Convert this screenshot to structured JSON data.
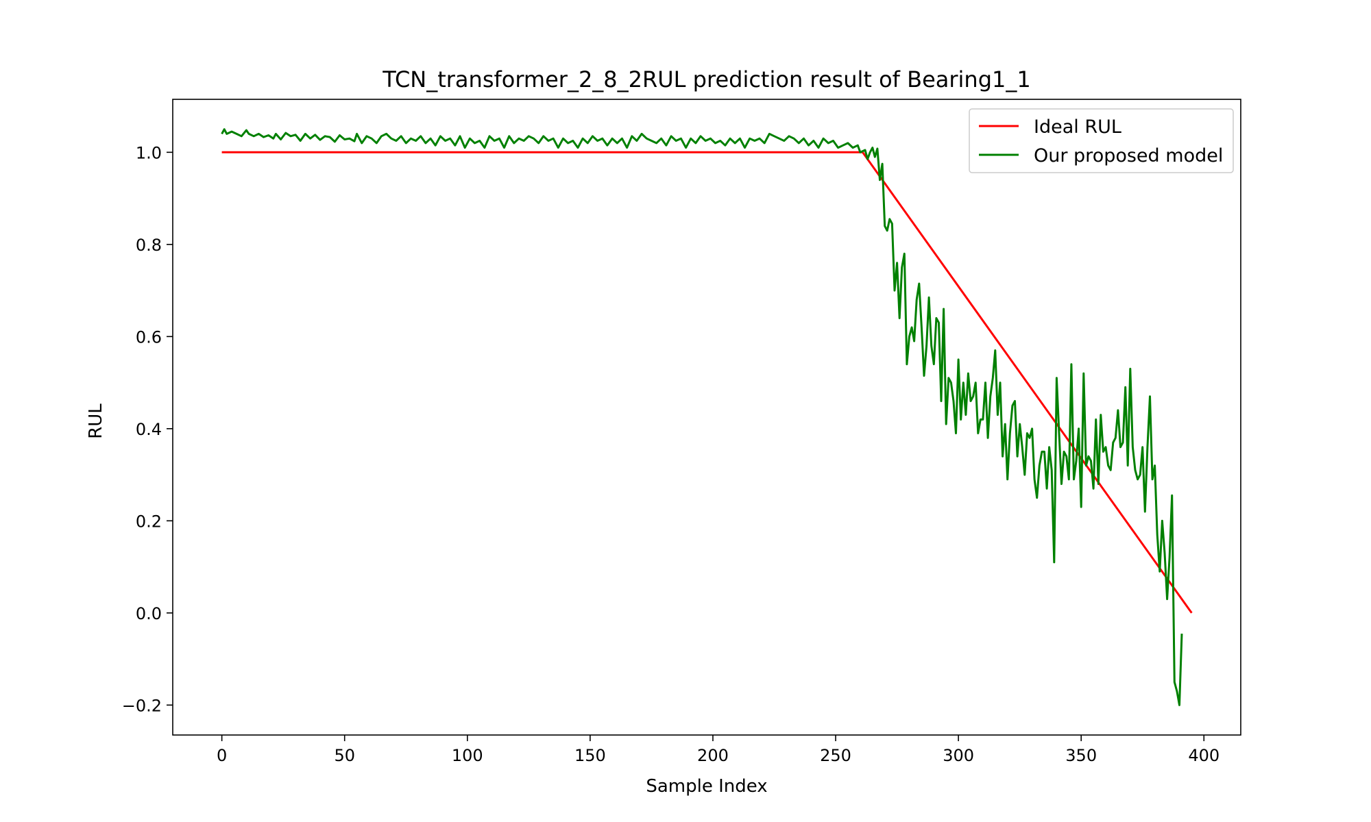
{
  "chart_data": {
    "type": "line",
    "title": "TCN_transformer_2_8_2RUL prediction result of Bearing1_1",
    "xlabel": "Sample Index",
    "ylabel": "RUL",
    "xlim": [
      -20,
      415
    ],
    "ylim": [
      -0.265,
      1.115
    ],
    "xticks": [
      0,
      50,
      100,
      150,
      200,
      250,
      300,
      350,
      400
    ],
    "yticks": [
      -0.2,
      0.0,
      0.2,
      0.4,
      0.6,
      0.8,
      1.0
    ],
    "ytick_labels": [
      "−0.2",
      "0.0",
      "0.2",
      "0.4",
      "0.6",
      "0.8",
      "1.0"
    ],
    "grid": false,
    "legend_position": "top-right",
    "series": [
      {
        "name": "Ideal RUL",
        "color": "#ff0000",
        "points": [
          [
            0,
            1.0
          ],
          [
            261,
            1.0
          ],
          [
            395,
            0.0
          ]
        ]
      },
      {
        "name": "Our proposed model",
        "color": "#008000",
        "points": [
          [
            0,
            1.04
          ],
          [
            1,
            1.05
          ],
          [
            2,
            1.04
          ],
          [
            4,
            1.045
          ],
          [
            6,
            1.04
          ],
          [
            8,
            1.035
          ],
          [
            10,
            1.048
          ],
          [
            11,
            1.04
          ],
          [
            13,
            1.035
          ],
          [
            15,
            1.04
          ],
          [
            17,
            1.033
          ],
          [
            19,
            1.037
          ],
          [
            21,
            1.03
          ],
          [
            22,
            1.04
          ],
          [
            24,
            1.028
          ],
          [
            26,
            1.042
          ],
          [
            28,
            1.035
          ],
          [
            30,
            1.038
          ],
          [
            32,
            1.025
          ],
          [
            34,
            1.04
          ],
          [
            36,
            1.03
          ],
          [
            38,
            1.038
          ],
          [
            40,
            1.027
          ],
          [
            42,
            1.035
          ],
          [
            44,
            1.033
          ],
          [
            46,
            1.023
          ],
          [
            48,
            1.037
          ],
          [
            50,
            1.028
          ],
          [
            52,
            1.03
          ],
          [
            54,
            1.024
          ],
          [
            55,
            1.04
          ],
          [
            57,
            1.02
          ],
          [
            59,
            1.035
          ],
          [
            61,
            1.03
          ],
          [
            63,
            1.02
          ],
          [
            65,
            1.035
          ],
          [
            67,
            1.04
          ],
          [
            69,
            1.03
          ],
          [
            71,
            1.025
          ],
          [
            73,
            1.035
          ],
          [
            75,
            1.02
          ],
          [
            77,
            1.03
          ],
          [
            79,
            1.025
          ],
          [
            81,
            1.035
          ],
          [
            83,
            1.02
          ],
          [
            85,
            1.03
          ],
          [
            87,
            1.015
          ],
          [
            89,
            1.035
          ],
          [
            91,
            1.025
          ],
          [
            93,
            1.03
          ],
          [
            95,
            1.015
          ],
          [
            97,
            1.035
          ],
          [
            99,
            1.01
          ],
          [
            101,
            1.03
          ],
          [
            103,
            1.02
          ],
          [
            105,
            1.025
          ],
          [
            107,
            1.01
          ],
          [
            109,
            1.035
          ],
          [
            111,
            1.025
          ],
          [
            113,
            1.03
          ],
          [
            115,
            1.01
          ],
          [
            117,
            1.035
          ],
          [
            119,
            1.02
          ],
          [
            121,
            1.03
          ],
          [
            123,
            1.025
          ],
          [
            125,
            1.035
          ],
          [
            127,
            1.03
          ],
          [
            129,
            1.02
          ],
          [
            131,
            1.035
          ],
          [
            133,
            1.025
          ],
          [
            135,
            1.03
          ],
          [
            137,
            1.01
          ],
          [
            139,
            1.03
          ],
          [
            141,
            1.02
          ],
          [
            143,
            1.025
          ],
          [
            145,
            1.01
          ],
          [
            147,
            1.03
          ],
          [
            149,
            1.02
          ],
          [
            151,
            1.035
          ],
          [
            153,
            1.025
          ],
          [
            155,
            1.03
          ],
          [
            157,
            1.015
          ],
          [
            159,
            1.03
          ],
          [
            161,
            1.02
          ],
          [
            163,
            1.03
          ],
          [
            165,
            1.01
          ],
          [
            167,
            1.035
          ],
          [
            169,
            1.025
          ],
          [
            171,
            1.04
          ],
          [
            173,
            1.03
          ],
          [
            175,
            1.025
          ],
          [
            177,
            1.02
          ],
          [
            179,
            1.03
          ],
          [
            181,
            1.015
          ],
          [
            183,
            1.035
          ],
          [
            185,
            1.025
          ],
          [
            187,
            1.03
          ],
          [
            189,
            1.01
          ],
          [
            191,
            1.03
          ],
          [
            193,
            1.02
          ],
          [
            195,
            1.035
          ],
          [
            197,
            1.025
          ],
          [
            199,
            1.03
          ],
          [
            201,
            1.02
          ],
          [
            203,
            1.025
          ],
          [
            205,
            1.015
          ],
          [
            207,
            1.03
          ],
          [
            209,
            1.02
          ],
          [
            211,
            1.03
          ],
          [
            213,
            1.01
          ],
          [
            215,
            1.03
          ],
          [
            217,
            1.025
          ],
          [
            219,
            1.03
          ],
          [
            221,
            1.02
          ],
          [
            223,
            1.04
          ],
          [
            225,
            1.035
          ],
          [
            227,
            1.03
          ],
          [
            229,
            1.025
          ],
          [
            231,
            1.035
          ],
          [
            233,
            1.03
          ],
          [
            235,
            1.02
          ],
          [
            237,
            1.03
          ],
          [
            239,
            1.015
          ],
          [
            241,
            1.025
          ],
          [
            243,
            1.01
          ],
          [
            245,
            1.03
          ],
          [
            247,
            1.02
          ],
          [
            249,
            1.025
          ],
          [
            251,
            1.01
          ],
          [
            253,
            1.015
          ],
          [
            255,
            1.02
          ],
          [
            257,
            1.01
          ],
          [
            259,
            1.015
          ],
          [
            260,
            1.0
          ],
          [
            262,
            1.005
          ],
          [
            263,
            0.985
          ],
          [
            264,
            1.0
          ],
          [
            265,
            1.01
          ],
          [
            266,
            0.99
          ],
          [
            267,
            1.008
          ],
          [
            268,
            0.94
          ],
          [
            269,
            0.975
          ],
          [
            270,
            0.84
          ],
          [
            271,
            0.83
          ],
          [
            272,
            0.855
          ],
          [
            273,
            0.845
          ],
          [
            274,
            0.7
          ],
          [
            275,
            0.76
          ],
          [
            276,
            0.64
          ],
          [
            277,
            0.75
          ],
          [
            278,
            0.78
          ],
          [
            279,
            0.54
          ],
          [
            280,
            0.6
          ],
          [
            281,
            0.62
          ],
          [
            282,
            0.59
          ],
          [
            283,
            0.68
          ],
          [
            284,
            0.715
          ],
          [
            285,
            0.62
          ],
          [
            286,
            0.515
          ],
          [
            287,
            0.58
          ],
          [
            288,
            0.685
          ],
          [
            289,
            0.58
          ],
          [
            290,
            0.54
          ],
          [
            291,
            0.64
          ],
          [
            292,
            0.63
          ],
          [
            293,
            0.46
          ],
          [
            294,
            0.66
          ],
          [
            295,
            0.41
          ],
          [
            296,
            0.51
          ],
          [
            297,
            0.5
          ],
          [
            298,
            0.46
          ],
          [
            299,
            0.39
          ],
          [
            300,
            0.55
          ],
          [
            301,
            0.42
          ],
          [
            302,
            0.5
          ],
          [
            303,
            0.43
          ],
          [
            304,
            0.52
          ],
          [
            305,
            0.46
          ],
          [
            306,
            0.47
          ],
          [
            307,
            0.5
          ],
          [
            308,
            0.39
          ],
          [
            309,
            0.42
          ],
          [
            310,
            0.42
          ],
          [
            311,
            0.5
          ],
          [
            312,
            0.38
          ],
          [
            313,
            0.47
          ],
          [
            314,
            0.51
          ],
          [
            315,
            0.57
          ],
          [
            316,
            0.43
          ],
          [
            317,
            0.5
          ],
          [
            318,
            0.34
          ],
          [
            319,
            0.41
          ],
          [
            320,
            0.29
          ],
          [
            321,
            0.39
          ],
          [
            322,
            0.45
          ],
          [
            323,
            0.46
          ],
          [
            324,
            0.34
          ],
          [
            325,
            0.41
          ],
          [
            326,
            0.36
          ],
          [
            327,
            0.3
          ],
          [
            328,
            0.39
          ],
          [
            329,
            0.38
          ],
          [
            330,
            0.4
          ],
          [
            331,
            0.29
          ],
          [
            332,
            0.25
          ],
          [
            333,
            0.32
          ],
          [
            334,
            0.35
          ],
          [
            335,
            0.35
          ],
          [
            336,
            0.27
          ],
          [
            337,
            0.36
          ],
          [
            338,
            0.31
          ],
          [
            339,
            0.11
          ],
          [
            340,
            0.51
          ],
          [
            341,
            0.39
          ],
          [
            342,
            0.28
          ],
          [
            343,
            0.35
          ],
          [
            344,
            0.34
          ],
          [
            345,
            0.29
          ],
          [
            346,
            0.54
          ],
          [
            347,
            0.29
          ],
          [
            348,
            0.33
          ],
          [
            349,
            0.4
          ],
          [
            350,
            0.23
          ],
          [
            351,
            0.52
          ],
          [
            352,
            0.32
          ],
          [
            353,
            0.34
          ],
          [
            354,
            0.33
          ],
          [
            355,
            0.27
          ],
          [
            356,
            0.42
          ],
          [
            357,
            0.28
          ],
          [
            358,
            0.43
          ],
          [
            359,
            0.35
          ],
          [
            360,
            0.36
          ],
          [
            361,
            0.32
          ],
          [
            362,
            0.31
          ],
          [
            363,
            0.37
          ],
          [
            364,
            0.38
          ],
          [
            365,
            0.44
          ],
          [
            366,
            0.36
          ],
          [
            367,
            0.37
          ],
          [
            368,
            0.49
          ],
          [
            369,
            0.32
          ],
          [
            370,
            0.53
          ],
          [
            371,
            0.36
          ],
          [
            372,
            0.31
          ],
          [
            373,
            0.29
          ],
          [
            374,
            0.3
          ],
          [
            375,
            0.36
          ],
          [
            376,
            0.22
          ],
          [
            377,
            0.36
          ],
          [
            378,
            0.47
          ],
          [
            379,
            0.29
          ],
          [
            380,
            0.32
          ],
          [
            381,
            0.17
          ],
          [
            382,
            0.09
          ],
          [
            383,
            0.2
          ],
          [
            384,
            0.13
          ],
          [
            385,
            0.03
          ],
          [
            386,
            0.12
          ],
          [
            387,
            0.255
          ],
          [
            388,
            -0.15
          ],
          [
            389,
            -0.17
          ],
          [
            390,
            -0.2
          ],
          [
            391,
            -0.045
          ]
        ]
      }
    ]
  }
}
